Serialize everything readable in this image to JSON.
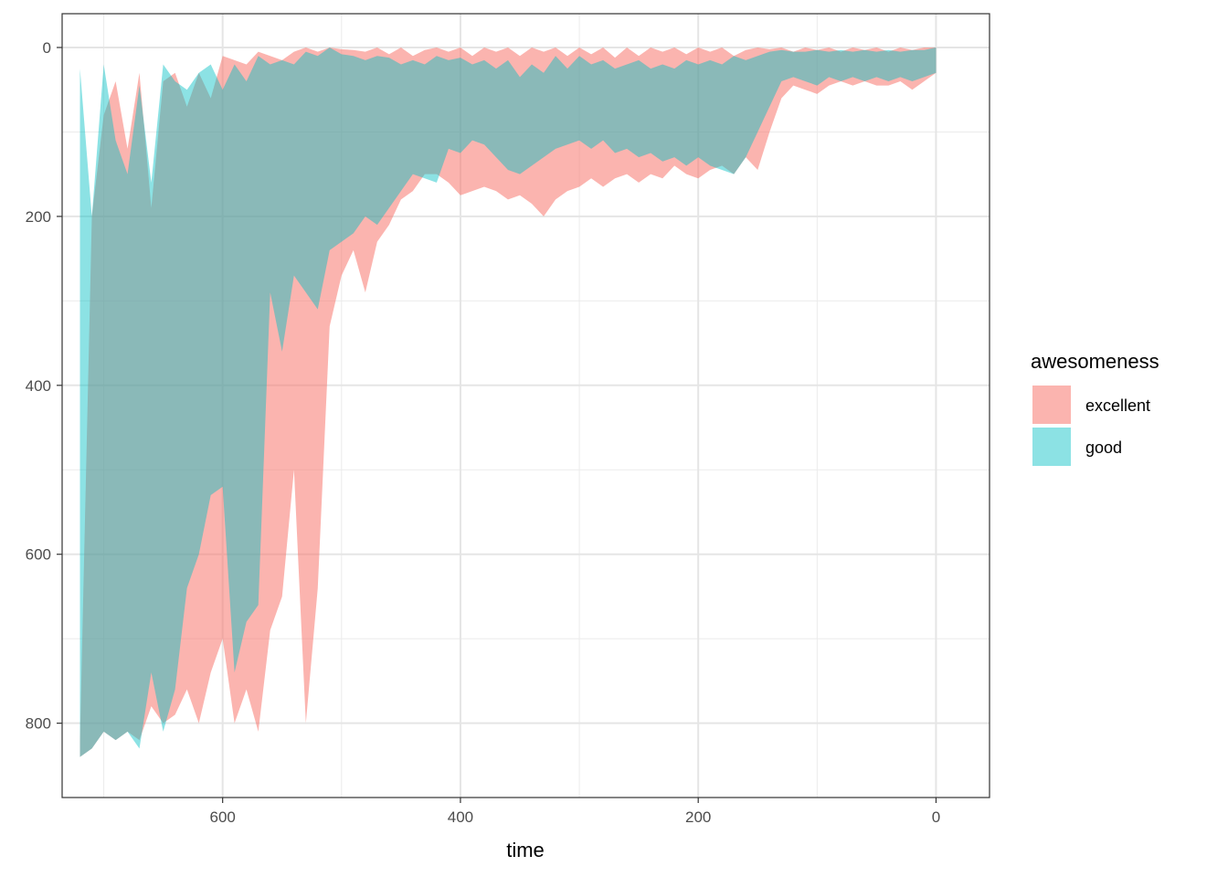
{
  "chart_data": {
    "type": "area",
    "xlabel": "time",
    "ylabel": "",
    "x_reversed": true,
    "y_reversed": true,
    "xlim": [
      735,
      -45
    ],
    "ylim": [
      -40,
      888
    ],
    "x_ticks": [
      "600",
      "400",
      "200",
      "0"
    ],
    "x_tick_values": [
      600,
      400,
      200,
      0
    ],
    "y_ticks": [
      "0",
      "200",
      "400",
      "600",
      "800"
    ],
    "y_tick_values": [
      0,
      200,
      400,
      600,
      800
    ],
    "grid": true,
    "legend": {
      "title": "awesomeness",
      "position": "right",
      "entries": [
        "excellent",
        "good"
      ]
    },
    "series": [
      {
        "name": "excellent",
        "color": "#F8766D",
        "opacity": 0.55,
        "upper": [
          [
            720,
            820
          ],
          [
            710,
            200
          ],
          [
            700,
            80
          ],
          [
            690,
            40
          ],
          [
            680,
            120
          ],
          [
            670,
            30
          ],
          [
            660,
            190
          ],
          [
            650,
            40
          ],
          [
            640,
            30
          ],
          [
            630,
            70
          ],
          [
            620,
            30
          ],
          [
            610,
            60
          ],
          [
            600,
            10
          ],
          [
            590,
            15
          ],
          [
            580,
            20
          ],
          [
            570,
            5
          ],
          [
            560,
            10
          ],
          [
            550,
            15
          ],
          [
            540,
            5
          ],
          [
            530,
            0
          ],
          [
            520,
            5
          ],
          [
            510,
            0
          ],
          [
            500,
            2
          ],
          [
            490,
            3
          ],
          [
            480,
            5
          ],
          [
            470,
            0
          ],
          [
            460,
            8
          ],
          [
            450,
            0
          ],
          [
            440,
            10
          ],
          [
            430,
            3
          ],
          [
            420,
            0
          ],
          [
            410,
            5
          ],
          [
            400,
            0
          ],
          [
            390,
            10
          ],
          [
            380,
            0
          ],
          [
            370,
            5
          ],
          [
            360,
            0
          ],
          [
            350,
            10
          ],
          [
            340,
            0
          ],
          [
            330,
            5
          ],
          [
            320,
            0
          ],
          [
            310,
            10
          ],
          [
            300,
            0
          ],
          [
            290,
            8
          ],
          [
            280,
            0
          ],
          [
            270,
            12
          ],
          [
            260,
            0
          ],
          [
            250,
            10
          ],
          [
            240,
            0
          ],
          [
            230,
            5
          ],
          [
            220,
            0
          ],
          [
            210,
            8
          ],
          [
            200,
            0
          ],
          [
            190,
            5
          ],
          [
            180,
            0
          ],
          [
            170,
            10
          ],
          [
            160,
            3
          ],
          [
            150,
            0
          ],
          [
            140,
            2
          ],
          [
            130,
            0
          ],
          [
            120,
            5
          ],
          [
            110,
            0
          ],
          [
            100,
            3
          ],
          [
            90,
            0
          ],
          [
            80,
            5
          ],
          [
            70,
            0
          ],
          [
            60,
            3
          ],
          [
            50,
            0
          ],
          [
            40,
            5
          ],
          [
            30,
            0
          ],
          [
            20,
            3
          ],
          [
            10,
            0
          ],
          [
            0,
            0
          ]
        ],
        "lower": [
          [
            720,
            840
          ],
          [
            710,
            830
          ],
          [
            700,
            810
          ],
          [
            690,
            820
          ],
          [
            680,
            810
          ],
          [
            670,
            820
          ],
          [
            660,
            780
          ],
          [
            650,
            800
          ],
          [
            640,
            790
          ],
          [
            630,
            760
          ],
          [
            620,
            800
          ],
          [
            610,
            740
          ],
          [
            600,
            700
          ],
          [
            590,
            800
          ],
          [
            580,
            760
          ],
          [
            570,
            810
          ],
          [
            560,
            690
          ],
          [
            550,
            650
          ],
          [
            540,
            500
          ],
          [
            530,
            800
          ],
          [
            520,
            640
          ],
          [
            510,
            330
          ],
          [
            500,
            270
          ],
          [
            490,
            240
          ],
          [
            480,
            290
          ],
          [
            470,
            230
          ],
          [
            460,
            210
          ],
          [
            450,
            180
          ],
          [
            440,
            170
          ],
          [
            430,
            150
          ],
          [
            420,
            150
          ],
          [
            410,
            160
          ],
          [
            400,
            175
          ],
          [
            390,
            170
          ],
          [
            380,
            165
          ],
          [
            370,
            170
          ],
          [
            360,
            180
          ],
          [
            350,
            175
          ],
          [
            340,
            185
          ],
          [
            330,
            200
          ],
          [
            320,
            180
          ],
          [
            310,
            170
          ],
          [
            300,
            165
          ],
          [
            290,
            155
          ],
          [
            280,
            165
          ],
          [
            270,
            155
          ],
          [
            260,
            150
          ],
          [
            250,
            160
          ],
          [
            240,
            150
          ],
          [
            230,
            155
          ],
          [
            220,
            140
          ],
          [
            210,
            150
          ],
          [
            200,
            155
          ],
          [
            190,
            145
          ],
          [
            180,
            140
          ],
          [
            170,
            150
          ],
          [
            160,
            130
          ],
          [
            150,
            145
          ],
          [
            140,
            100
          ],
          [
            130,
            60
          ],
          [
            120,
            45
          ],
          [
            110,
            50
          ],
          [
            100,
            55
          ],
          [
            90,
            45
          ],
          [
            80,
            40
          ],
          [
            70,
            45
          ],
          [
            60,
            40
          ],
          [
            50,
            45
          ],
          [
            40,
            45
          ],
          [
            30,
            40
          ],
          [
            20,
            50
          ],
          [
            10,
            40
          ],
          [
            0,
            30
          ]
        ]
      },
      {
        "name": "good",
        "color": "#00BFC4",
        "opacity": 0.45,
        "upper": [
          [
            720,
            25
          ],
          [
            710,
            200
          ],
          [
            700,
            20
          ],
          [
            690,
            110
          ],
          [
            680,
            150
          ],
          [
            670,
            45
          ],
          [
            660,
            160
          ],
          [
            650,
            20
          ],
          [
            640,
            40
          ],
          [
            630,
            50
          ],
          [
            620,
            30
          ],
          [
            610,
            20
          ],
          [
            600,
            50
          ],
          [
            590,
            20
          ],
          [
            580,
            40
          ],
          [
            570,
            10
          ],
          [
            560,
            20
          ],
          [
            550,
            15
          ],
          [
            540,
            20
          ],
          [
            530,
            5
          ],
          [
            520,
            10
          ],
          [
            510,
            0
          ],
          [
            500,
            8
          ],
          [
            490,
            10
          ],
          [
            480,
            15
          ],
          [
            470,
            10
          ],
          [
            460,
            12
          ],
          [
            450,
            20
          ],
          [
            440,
            15
          ],
          [
            430,
            20
          ],
          [
            420,
            10
          ],
          [
            410,
            15
          ],
          [
            400,
            12
          ],
          [
            390,
            20
          ],
          [
            380,
            15
          ],
          [
            370,
            25
          ],
          [
            360,
            15
          ],
          [
            350,
            35
          ],
          [
            340,
            20
          ],
          [
            330,
            30
          ],
          [
            320,
            10
          ],
          [
            310,
            25
          ],
          [
            300,
            10
          ],
          [
            290,
            20
          ],
          [
            280,
            15
          ],
          [
            270,
            25
          ],
          [
            260,
            20
          ],
          [
            250,
            15
          ],
          [
            240,
            25
          ],
          [
            230,
            20
          ],
          [
            220,
            25
          ],
          [
            210,
            15
          ],
          [
            200,
            20
          ],
          [
            190,
            15
          ],
          [
            180,
            20
          ],
          [
            170,
            10
          ],
          [
            160,
            15
          ],
          [
            150,
            10
          ],
          [
            140,
            5
          ],
          [
            130,
            3
          ],
          [
            120,
            5
          ],
          [
            110,
            5
          ],
          [
            100,
            3
          ],
          [
            90,
            5
          ],
          [
            80,
            3
          ],
          [
            70,
            5
          ],
          [
            60,
            3
          ],
          [
            50,
            5
          ],
          [
            40,
            3
          ],
          [
            30,
            5
          ],
          [
            20,
            3
          ],
          [
            10,
            3
          ],
          [
            0,
            0
          ]
        ],
        "lower": [
          [
            720,
            840
          ],
          [
            710,
            830
          ],
          [
            700,
            810
          ],
          [
            690,
            820
          ],
          [
            680,
            810
          ],
          [
            670,
            830
          ],
          [
            660,
            740
          ],
          [
            650,
            810
          ],
          [
            640,
            760
          ],
          [
            630,
            640
          ],
          [
            620,
            600
          ],
          [
            610,
            530
          ],
          [
            600,
            520
          ],
          [
            590,
            740
          ],
          [
            580,
            680
          ],
          [
            570,
            660
          ],
          [
            560,
            290
          ],
          [
            550,
            360
          ],
          [
            540,
            270
          ],
          [
            530,
            290
          ],
          [
            520,
            310
          ],
          [
            510,
            240
          ],
          [
            500,
            230
          ],
          [
            490,
            220
          ],
          [
            480,
            200
          ],
          [
            470,
            210
          ],
          [
            460,
            190
          ],
          [
            450,
            170
          ],
          [
            440,
            150
          ],
          [
            430,
            155
          ],
          [
            420,
            160
          ],
          [
            410,
            120
          ],
          [
            400,
            125
          ],
          [
            390,
            110
          ],
          [
            380,
            115
          ],
          [
            370,
            130
          ],
          [
            360,
            145
          ],
          [
            350,
            150
          ],
          [
            340,
            140
          ],
          [
            330,
            130
          ],
          [
            320,
            120
          ],
          [
            310,
            115
          ],
          [
            300,
            110
          ],
          [
            290,
            120
          ],
          [
            280,
            110
          ],
          [
            270,
            125
          ],
          [
            260,
            120
          ],
          [
            250,
            130
          ],
          [
            240,
            125
          ],
          [
            230,
            135
          ],
          [
            220,
            130
          ],
          [
            210,
            140
          ],
          [
            200,
            130
          ],
          [
            190,
            140
          ],
          [
            180,
            145
          ],
          [
            170,
            150
          ],
          [
            160,
            130
          ],
          [
            150,
            100
          ],
          [
            140,
            70
          ],
          [
            130,
            40
          ],
          [
            120,
            35
          ],
          [
            110,
            40
          ],
          [
            100,
            45
          ],
          [
            90,
            35
          ],
          [
            80,
            40
          ],
          [
            70,
            35
          ],
          [
            60,
            40
          ],
          [
            50,
            35
          ],
          [
            40,
            40
          ],
          [
            30,
            35
          ],
          [
            20,
            40
          ],
          [
            10,
            35
          ],
          [
            0,
            30
          ]
        ]
      }
    ]
  }
}
